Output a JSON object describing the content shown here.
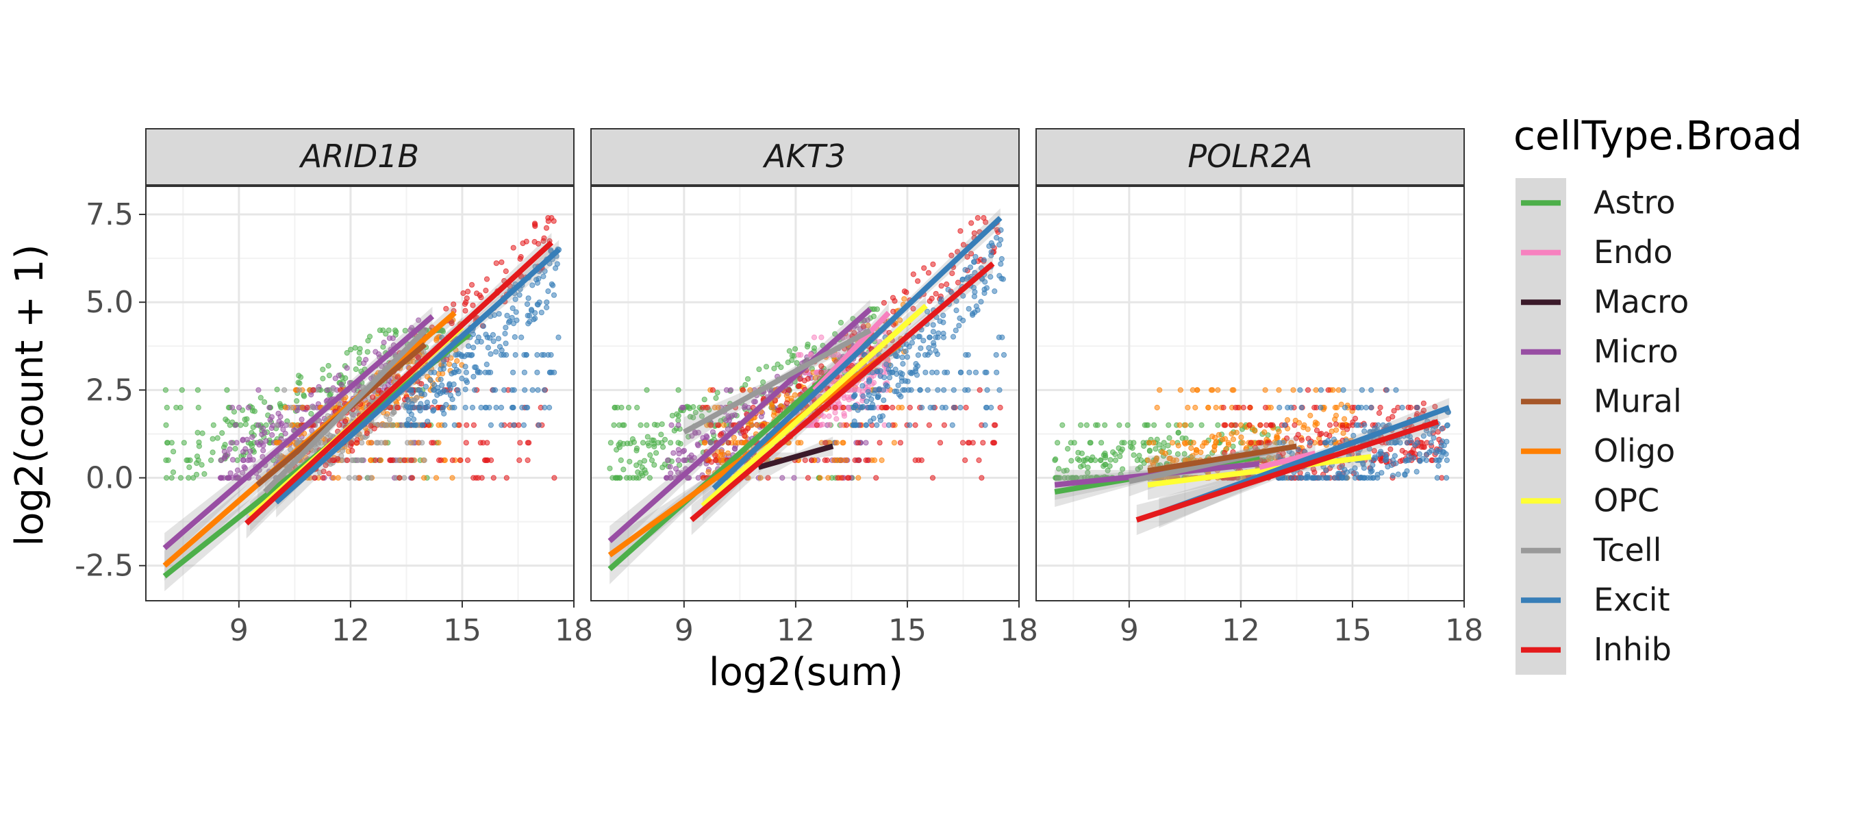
{
  "chart_data": {
    "type": "scatter",
    "facets": [
      "ARID1B",
      "AKT3",
      "POLR2A"
    ],
    "xlabel": "log2(sum)",
    "ylabel": "log2(count + 1)",
    "xlim": [
      6.5,
      18
    ],
    "ylim": [
      -3.5,
      8.3
    ],
    "x_ticks": [
      9,
      12,
      15,
      18
    ],
    "y_ticks": [
      -2.5,
      0.0,
      2.5,
      5.0,
      7.5
    ],
    "y_tick_labels": [
      "-2.5",
      "0.0",
      "2.5",
      "5.0",
      "7.5"
    ],
    "grid": true,
    "legend_title": "cellType.Broad",
    "legend_position": "right",
    "legend": [
      {
        "name": "Astro",
        "color": "#4DAF4A"
      },
      {
        "name": "Endo",
        "color": "#F781BF"
      },
      {
        "name": "Macro",
        "color": "#3B1A2A"
      },
      {
        "name": "Micro",
        "color": "#984EA3"
      },
      {
        "name": "Mural",
        "color": "#A65628"
      },
      {
        "name": "Oligo",
        "color": "#FF7F00"
      },
      {
        "name": "OPC",
        "color": "#FFFF33"
      },
      {
        "name": "Tcell",
        "color": "#999999"
      },
      {
        "name": "Excit",
        "color": "#377EB8"
      },
      {
        "name": "Inhib",
        "color": "#E41A1C"
      }
    ],
    "panels": [
      {
        "gene": "ARID1B",
        "point_clusters": [
          {
            "type": "Astro",
            "x": [
              7,
              14.5
            ],
            "y": [
              0,
              4.2
            ],
            "slope": 0.6
          },
          {
            "type": "Micro",
            "x": [
              8.5,
              14
            ],
            "y": [
              0,
              4.5
            ],
            "slope": 0.7
          },
          {
            "type": "Oligo",
            "x": [
              10,
              15
            ],
            "y": [
              0,
              5.0
            ],
            "slope": 0.8
          },
          {
            "type": "Tcell",
            "x": [
              10,
              14
            ],
            "y": [
              0,
              4.2
            ],
            "slope": 0.8
          },
          {
            "type": "Inhib",
            "x": [
              10.5,
              17.5
            ],
            "y": [
              0,
              7.4
            ],
            "slope": 1.0
          },
          {
            "type": "Excit",
            "x": [
              13.5,
              17.6
            ],
            "y": [
              1.5,
              6.8
            ],
            "slope": 1.1
          }
        ],
        "fits": [
          {
            "type": "Astro",
            "x": [
              7.0,
              15.2
            ],
            "y": [
              -2.8,
              4.1
            ]
          },
          {
            "type": "Micro",
            "x": [
              7.0,
              14.2
            ],
            "y": [
              -2.0,
              4.6
            ]
          },
          {
            "type": "Oligo",
            "x": [
              7.0,
              14.8
            ],
            "y": [
              -2.5,
              4.7
            ]
          },
          {
            "type": "OPC",
            "x": [
              9.3,
              15.0
            ],
            "y": [
              -1.1,
              4.3
            ]
          },
          {
            "type": "Mural",
            "x": [
              9.5,
              14.0
            ],
            "y": [
              -0.2,
              3.8
            ]
          },
          {
            "type": "Tcell",
            "x": [
              9.7,
              14.0
            ],
            "y": [
              -0.4,
              4.2
            ]
          },
          {
            "type": "Excit",
            "x": [
              10.0,
              17.6
            ],
            "y": [
              -0.7,
              6.5
            ]
          },
          {
            "type": "Inhib",
            "x": [
              9.2,
              17.4
            ],
            "y": [
              -1.3,
              6.7
            ]
          }
        ]
      },
      {
        "gene": "AKT3",
        "point_clusters": [
          {
            "type": "Astro",
            "x": [
              7,
              14.2
            ],
            "y": [
              0,
              4.8
            ],
            "slope": 0.6
          },
          {
            "type": "Micro",
            "x": [
              8.5,
              14
            ],
            "y": [
              0,
              5.0
            ],
            "slope": 0.7
          },
          {
            "type": "Oligo",
            "x": [
              9.5,
              15
            ],
            "y": [
              0,
              5.3
            ],
            "slope": 0.8
          },
          {
            "type": "Endo",
            "x": [
              12,
              14.5
            ],
            "y": [
              1.5,
              5.2
            ],
            "slope": 0.8
          },
          {
            "type": "Inhib",
            "x": [
              9.5,
              17.5
            ],
            "y": [
              0,
              7.4
            ],
            "slope": 0.9
          },
          {
            "type": "Excit",
            "x": [
              13.5,
              17.6
            ],
            "y": [
              1.5,
              7.4
            ],
            "slope": 1.2
          }
        ],
        "fits": [
          {
            "type": "Astro",
            "x": [
              7.0,
              14.0
            ],
            "y": [
              -2.6,
              4.0
            ]
          },
          {
            "type": "Micro",
            "x": [
              7.0,
              14.0
            ],
            "y": [
              -1.8,
              4.8
            ]
          },
          {
            "type": "Oligo",
            "x": [
              7.0,
              14.8
            ],
            "y": [
              -2.2,
              3.8
            ]
          },
          {
            "type": "OPC",
            "x": [
              9.5,
              15.5
            ],
            "y": [
              -0.8,
              4.9
            ]
          },
          {
            "type": "Endo",
            "x": [
              12.5,
              14.5
            ],
            "y": [
              2.5,
              4.7
            ]
          },
          {
            "type": "Tcell",
            "x": [
              9.0,
              14.0
            ],
            "y": [
              1.3,
              4.2
            ]
          },
          {
            "type": "Macro",
            "x": [
              11.0,
              13.0
            ],
            "y": [
              0.3,
              0.9
            ]
          },
          {
            "type": "Excit",
            "x": [
              9.8,
              17.5
            ],
            "y": [
              -0.3,
              7.4
            ]
          },
          {
            "type": "Inhib",
            "x": [
              9.2,
              17.3
            ],
            "y": [
              -1.2,
              6.1
            ]
          }
        ]
      },
      {
        "gene": "POLR2A",
        "point_clusters": [
          {
            "type": "Astro",
            "x": [
              7,
              13
            ],
            "y": [
              0,
              1.5
            ],
            "slope": 0.15
          },
          {
            "type": "Oligo",
            "x": [
              9.5,
              15
            ],
            "y": [
              0,
              2.5
            ],
            "slope": 0.25
          },
          {
            "type": "Inhib",
            "x": [
              11.5,
              17.5
            ],
            "y": [
              0,
              4.0
            ],
            "slope": 0.25
          },
          {
            "type": "Excit",
            "x": [
              13,
              17.6
            ],
            "y": [
              0,
              3.8
            ],
            "slope": 0.25
          }
        ],
        "fits": [
          {
            "type": "Astro",
            "x": [
              7.0,
              12.5
            ],
            "y": [
              -0.4,
              0.6
            ]
          },
          {
            "type": "Micro",
            "x": [
              7.0,
              12.5
            ],
            "y": [
              -0.2,
              0.4
            ]
          },
          {
            "type": "Tcell",
            "x": [
              9.0,
              13.0
            ],
            "y": [
              -0.1,
              0.8
            ]
          },
          {
            "type": "Mural",
            "x": [
              9.5,
              13.5
            ],
            "y": [
              0.2,
              0.9
            ]
          },
          {
            "type": "OPC",
            "x": [
              9.5,
              15.5
            ],
            "y": [
              -0.2,
              0.6
            ]
          },
          {
            "type": "Endo",
            "x": [
              12.5,
              14.0
            ],
            "y": [
              0.3,
              0.7
            ]
          },
          {
            "type": "Excit",
            "x": [
              9.8,
              17.6
            ],
            "y": [
              -1.0,
              2.0
            ]
          },
          {
            "type": "Inhib",
            "x": [
              9.2,
              17.3
            ],
            "y": [
              -1.2,
              1.6
            ]
          }
        ]
      }
    ]
  }
}
